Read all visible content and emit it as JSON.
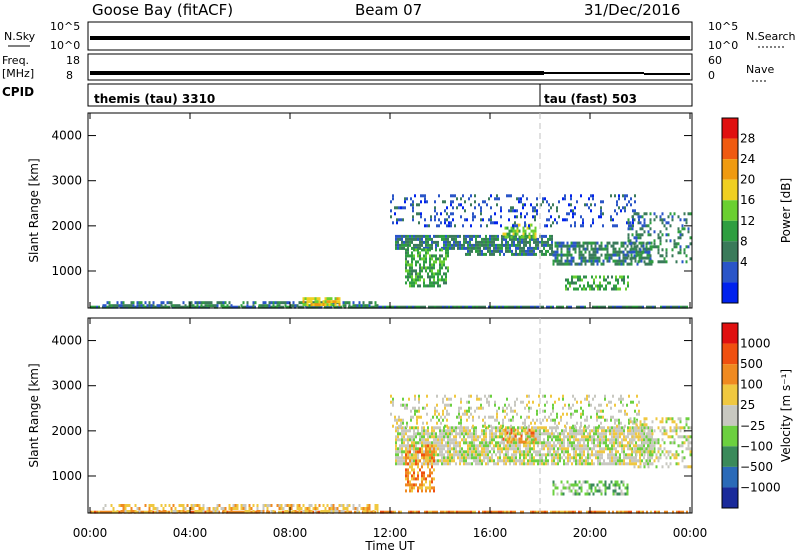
{
  "header": {
    "station": "Goose Bay (fitACF)",
    "beam": "Beam 07",
    "date": "31/Dec/2016"
  },
  "status_panels": {
    "nsky_label": "N.Sky",
    "nsky_ticks": [
      "10^5",
      "10^0"
    ],
    "nsearch_label": "N.Search",
    "nsearch_ticks": [
      "10^5",
      "10^0"
    ],
    "freq_label_1": "Freq.",
    "freq_label_2": "[MHz]",
    "freq_ticks": [
      "18",
      "8"
    ],
    "nave_label": "Nave",
    "nave_ticks": [
      "60",
      "0"
    ],
    "cpid_label": "CPID",
    "cpid_segments": [
      {
        "label": "themis (tau) 3310",
        "start_hour": 0,
        "end_hour": 18
      },
      {
        "label": "tau (fast) 503",
        "start_hour": 18,
        "end_hour": 24
      }
    ]
  },
  "chart_data": [
    {
      "type": "heatmap",
      "name": "power",
      "ylabel": "Slant Range [km]",
      "xlim": [
        0,
        24
      ],
      "ylim": [
        180,
        4500
      ],
      "yticks": [
        1000,
        2000,
        3000,
        4000
      ],
      "colorbar_label": "Power [dB]",
      "colorbar_ticks": [
        "28",
        "24",
        "20",
        "16",
        "12",
        "8",
        "4"
      ],
      "colorbar_colors": [
        "#0022ee",
        "#2a55c8",
        "#3a7a5a",
        "#2e9e40",
        "#6ad030",
        "#f0d020",
        "#f09a10",
        "#f05a10",
        "#e01010"
      ],
      "regions": [
        {
          "t0": 0.0,
          "t1": 23.9,
          "r0": 180,
          "r1": 230,
          "level": 2,
          "density": 0.9
        },
        {
          "t0": 0.5,
          "t1": 11.5,
          "r0": 230,
          "r1": 330,
          "level": 2,
          "density": 0.6
        },
        {
          "t0": 8.5,
          "t1": 10.0,
          "r0": 260,
          "r1": 420,
          "level": 5,
          "density": 0.7
        },
        {
          "t0": 12.2,
          "t1": 15.0,
          "r0": 1500,
          "r1": 1800,
          "level": 2,
          "density": 0.8
        },
        {
          "t0": 12.6,
          "t1": 14.3,
          "r0": 650,
          "r1": 1500,
          "level": 3,
          "density": 0.6
        },
        {
          "t0": 15.0,
          "t1": 18.5,
          "r0": 1350,
          "r1": 1800,
          "level": 2,
          "density": 0.75
        },
        {
          "t0": 16.5,
          "t1": 17.8,
          "r0": 1750,
          "r1": 2050,
          "level": 4,
          "density": 0.6
        },
        {
          "t0": 18.5,
          "t1": 22.5,
          "r0": 1150,
          "r1": 1650,
          "level": 2,
          "density": 0.7
        },
        {
          "t0": 19.0,
          "t1": 21.5,
          "r0": 600,
          "r1": 900,
          "level": 3,
          "density": 0.5
        },
        {
          "t0": 12.0,
          "t1": 22.0,
          "r0": 2000,
          "r1": 2700,
          "level": 1,
          "density": 0.25
        },
        {
          "t0": 21.5,
          "t1": 24.0,
          "r0": 1200,
          "r1": 2300,
          "level": 2,
          "density": 0.3
        }
      ]
    },
    {
      "type": "heatmap",
      "name": "velocity",
      "ylabel": "Slant Range [km]",
      "xlim": [
        0,
        24
      ],
      "ylim": [
        180,
        4500
      ],
      "yticks": [
        1000,
        2000,
        3000,
        4000
      ],
      "colorbar_label": "Velocity [m s⁻¹]",
      "colorbar_ticks": [
        "1000",
        "500",
        "100",
        "25",
        "−25",
        "−100",
        "−500",
        "−1000"
      ],
      "colorbar_colors": [
        "#1a2a9a",
        "#2a6ab8",
        "#3a8a5a",
        "#6cd040",
        "#c8c8c0",
        "#f0c840",
        "#f08a20",
        "#f05010",
        "#e01010"
      ],
      "regions": [
        {
          "t0": 0.0,
          "t1": 23.9,
          "r0": 180,
          "r1": 230,
          "level": 6,
          "density": 0.85
        },
        {
          "t0": 0.5,
          "t1": 11.5,
          "r0": 230,
          "r1": 380,
          "level": 5,
          "density": 0.55
        },
        {
          "t0": 12.2,
          "t1": 22.5,
          "r0": 1300,
          "r1": 2100,
          "level": 4,
          "density": 0.8
        },
        {
          "t0": 12.6,
          "t1": 13.8,
          "r0": 700,
          "r1": 1700,
          "level": 6,
          "density": 0.6
        },
        {
          "t0": 16.5,
          "t1": 17.8,
          "r0": 1750,
          "r1": 2050,
          "level": 6,
          "density": 0.5
        },
        {
          "t0": 18.5,
          "t1": 21.5,
          "r0": 600,
          "r1": 900,
          "level": 3,
          "density": 0.5
        },
        {
          "t0": 12.0,
          "t1": 22.0,
          "r0": 2100,
          "r1": 2800,
          "level": 4,
          "density": 0.25
        },
        {
          "t0": 21.5,
          "t1": 24.0,
          "r0": 1200,
          "r1": 2300,
          "level": 4,
          "density": 0.35
        }
      ]
    }
  ],
  "x_axis": {
    "label": "Time UT",
    "ticks": [
      "00:00",
      "04:00",
      "08:00",
      "12:00",
      "16:00",
      "20:00",
      "00:00"
    ]
  },
  "colors": {
    "marker_line": "#c0c0c0"
  }
}
